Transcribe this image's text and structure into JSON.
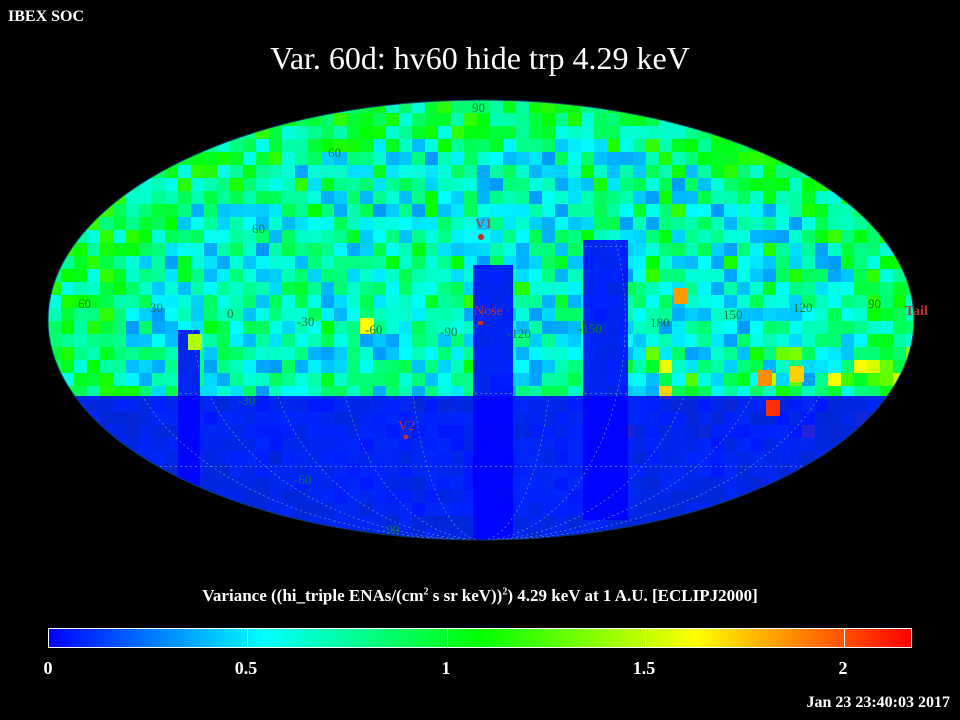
{
  "header": {
    "org": "IBEX SOC",
    "title": "Var. 60d: hv60 hide trp 4.29 keV"
  },
  "map": {
    "projection": "mollweide",
    "frame": "ECLIPJ2000",
    "markers": [
      {
        "label": "V1",
        "color": "#cc2222"
      },
      {
        "label": "Nose",
        "color": "#cc2222"
      },
      {
        "label": "V2",
        "color": "#cc2222"
      },
      {
        "label": "Tail",
        "color": "#cc2222"
      }
    ],
    "lon_labels": [
      "60",
      "30",
      "0",
      "-30",
      "-60",
      "-90",
      "-120",
      "-150",
      "180",
      "150",
      "120",
      "90"
    ],
    "lat_labels": [
      "60",
      "30",
      "-30",
      "-60",
      "-90",
      "90"
    ]
  },
  "colorbar": {
    "label_pre": "Variance ((hi_triple ENAs/(cm",
    "label_sup": "2",
    "label_post": " s sr keV))",
    "label_sup2": "2",
    "label_end": ") 4.29 keV at 1 A.U. [ECLIPJ2000]",
    "ticks": [
      "0",
      "0.5",
      "1",
      "1.5",
      "2"
    ],
    "range": [
      0,
      2.18
    ],
    "colors": [
      "#0000ff",
      "#00ffff",
      "#00ff00",
      "#ffff00",
      "#ff0000"
    ]
  },
  "footer": {
    "timestamp": "Jan 23 23:40:03 2017"
  }
}
